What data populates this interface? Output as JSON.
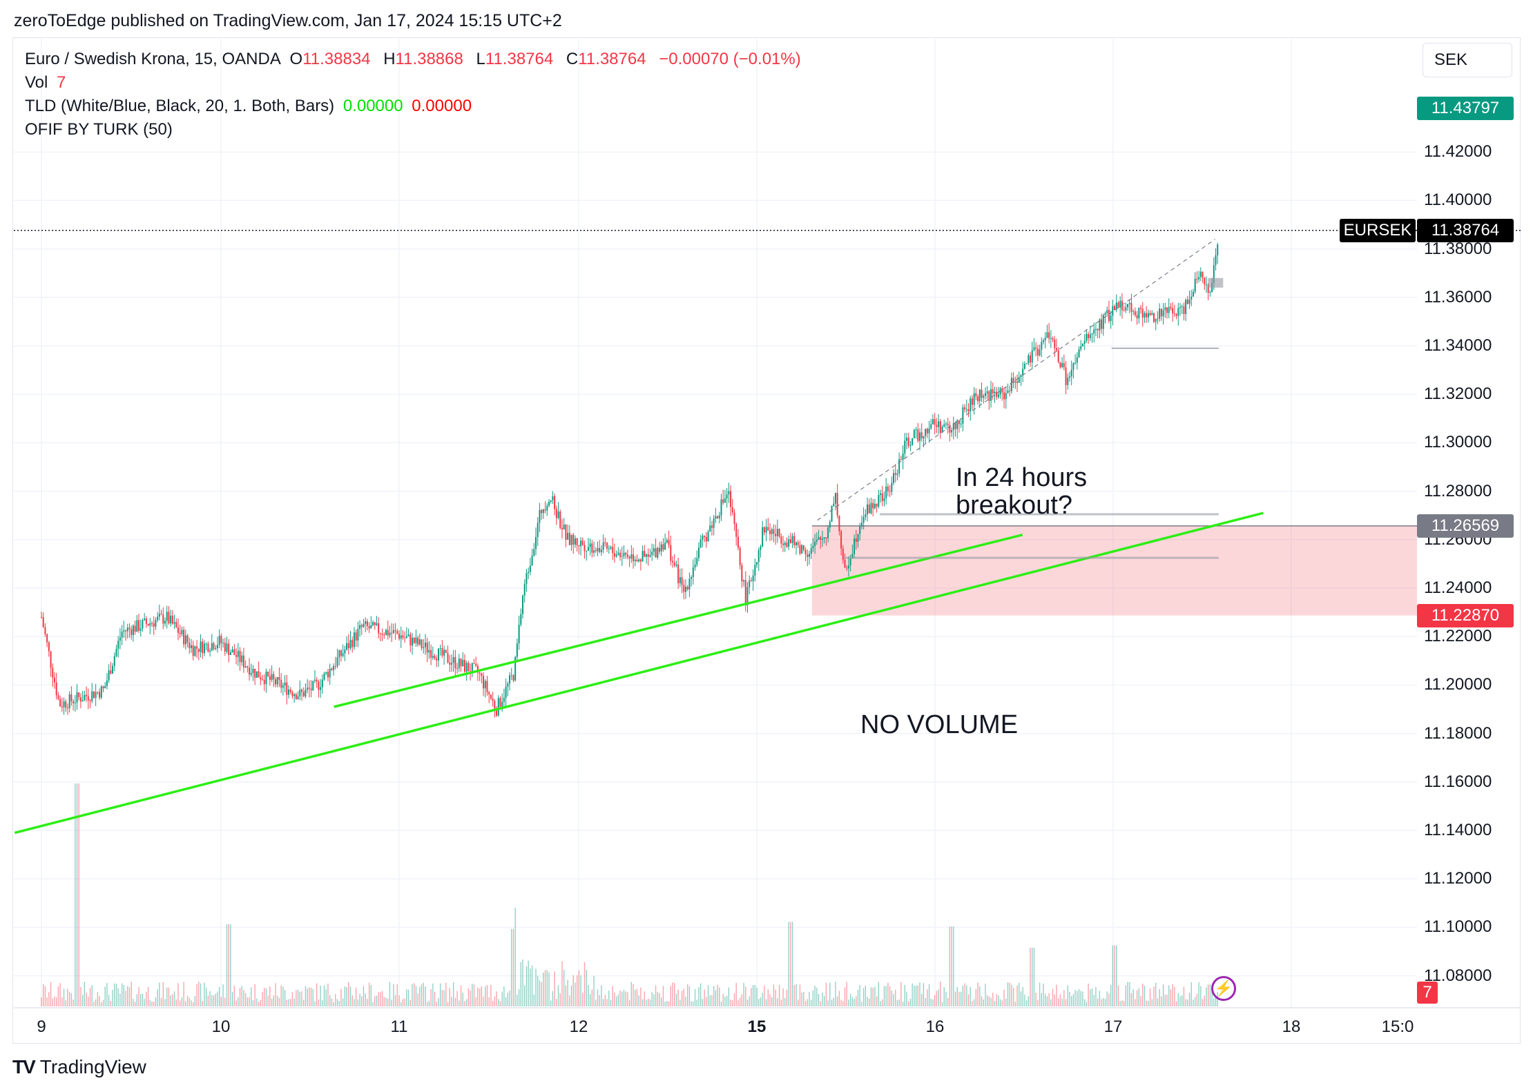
{
  "header": {
    "published": "zeroToEdge published on TradingView.com, Jan 17, 2024 15:15 UTC+2"
  },
  "legend": {
    "symbol": "Euro / Swedish Krona, 15, OANDA",
    "o_label": "O",
    "o_value": "11.38834",
    "h_label": "H",
    "h_value": "11.38868",
    "l_label": "L",
    "l_value": "11.38764",
    "c_label": "C",
    "c_value": "11.38764",
    "change": "−0.00070 (−0.01%)",
    "vol_label": "Vol",
    "vol_value": "7",
    "tld_label": "TLD (White/Blue, Black, 20, 1. Both, Bars)",
    "tld_v1": "0.00000",
    "tld_v2": "0.00000",
    "ofif_label": "OFIF BY TURK (50)"
  },
  "currency": "SEK",
  "price_tags": {
    "target": "11.43797",
    "ticker": "EURSEK",
    "last": "11.38764",
    "entry": "11.26569",
    "stop": "11.22870",
    "volume": "7"
  },
  "annotations": {
    "breakout_line1": "In 24 hours",
    "breakout_line2": "breakout?",
    "no_volume": "NO VOLUME"
  },
  "colors": {
    "up": "#089981",
    "down": "#f23645",
    "target_zone": "#26a69a",
    "stop_zone": "#f23645",
    "trendline": "#2cee14"
  },
  "icons": {
    "flash": "lightning-icon"
  },
  "brand": {
    "logo": "TV",
    "name": "TradingView"
  },
  "chart_data": {
    "type": "candlestick",
    "symbol": "EURSEK",
    "timeframe": "15",
    "y_ticks": [
      "11.42000",
      "11.40000",
      "11.38000",
      "11.36000",
      "11.34000",
      "11.32000",
      "11.30000",
      "11.28000",
      "11.26000",
      "11.24000",
      "11.22000",
      "11.20000",
      "11.18000",
      "11.16000",
      "11.14000",
      "11.12000",
      "11.10000",
      "11.08000"
    ],
    "x_ticks": [
      {
        "label": "9",
        "bold": false
      },
      {
        "label": "10",
        "bold": false
      },
      {
        "label": "11",
        "bold": false
      },
      {
        "label": "12",
        "bold": false
      },
      {
        "label": "15",
        "bold": true
      },
      {
        "label": "16",
        "bold": false
      },
      {
        "label": "17",
        "bold": false
      },
      {
        "label": "18",
        "bold": false
      },
      {
        "label": "15:0",
        "bold": false
      }
    ],
    "ylim": [
      11.07,
      11.445
    ],
    "price_path": [
      {
        "x": 0.0,
        "y": 11.228
      },
      {
        "x": 0.1,
        "y": 11.192
      },
      {
        "x": 0.35,
        "y": 11.198
      },
      {
        "x": 0.45,
        "y": 11.222
      },
      {
        "x": 0.7,
        "y": 11.228
      },
      {
        "x": 0.85,
        "y": 11.215
      },
      {
        "x": 1.0,
        "y": 11.218
      },
      {
        "x": 1.2,
        "y": 11.205
      },
      {
        "x": 1.45,
        "y": 11.196
      },
      {
        "x": 1.55,
        "y": 11.2
      },
      {
        "x": 1.8,
        "y": 11.224
      },
      {
        "x": 2.0,
        "y": 11.221
      },
      {
        "x": 2.3,
        "y": 11.21
      },
      {
        "x": 2.45,
        "y": 11.205
      },
      {
        "x": 2.55,
        "y": 11.19
      },
      {
        "x": 2.65,
        "y": 11.205
      },
      {
        "x": 2.7,
        "y": 11.238
      },
      {
        "x": 2.8,
        "y": 11.272
      },
      {
        "x": 2.85,
        "y": 11.278
      },
      {
        "x": 2.95,
        "y": 11.26
      },
      {
        "x": 3.2,
        "y": 11.255
      },
      {
        "x": 3.4,
        "y": 11.252
      },
      {
        "x": 3.5,
        "y": 11.26
      },
      {
        "x": 3.6,
        "y": 11.238
      },
      {
        "x": 3.7,
        "y": 11.258
      },
      {
        "x": 3.85,
        "y": 11.28
      },
      {
        "x": 3.95,
        "y": 11.235
      },
      {
        "x": 4.05,
        "y": 11.265
      },
      {
        "x": 4.3,
        "y": 11.255
      },
      {
        "x": 4.4,
        "y": 11.262
      },
      {
        "x": 4.45,
        "y": 11.28
      },
      {
        "x": 4.5,
        "y": 11.245
      },
      {
        "x": 4.6,
        "y": 11.27
      },
      {
        "x": 4.75,
        "y": 11.28
      },
      {
        "x": 4.85,
        "y": 11.3
      },
      {
        "x": 5.0,
        "y": 11.308
      },
      {
        "x": 5.1,
        "y": 11.305
      },
      {
        "x": 5.25,
        "y": 11.32
      },
      {
        "x": 5.4,
        "y": 11.32
      },
      {
        "x": 5.5,
        "y": 11.33
      },
      {
        "x": 5.65,
        "y": 11.345
      },
      {
        "x": 5.75,
        "y": 11.325
      },
      {
        "x": 5.85,
        "y": 11.342
      },
      {
        "x": 5.95,
        "y": 11.35
      },
      {
        "x": 6.05,
        "y": 11.358
      },
      {
        "x": 6.2,
        "y": 11.352
      },
      {
        "x": 6.4,
        "y": 11.355
      },
      {
        "x": 6.5,
        "y": 11.372
      },
      {
        "x": 6.55,
        "y": 11.36
      },
      {
        "x": 6.6,
        "y": 11.387
      }
    ],
    "volume_spikes": [
      {
        "x": 0.2,
        "v": 0.95
      },
      {
        "x": 1.05,
        "v": 0.35
      },
      {
        "x": 2.65,
        "v": 0.33
      },
      {
        "x": 4.2,
        "v": 0.36
      },
      {
        "x": 5.1,
        "v": 0.34
      },
      {
        "x": 5.55,
        "v": 0.25
      },
      {
        "x": 6.02,
        "v": 0.26
      }
    ],
    "trendlines": [
      {
        "from": {
          "x": 1.64,
          "y": 11.191
        },
        "to": {
          "x": 5.5,
          "y": 11.262
        }
      },
      {
        "from": {
          "x": -0.15,
          "y": 11.139
        },
        "to": {
          "x": 6.85,
          "y": 11.271
        }
      }
    ],
    "position": {
      "target": 11.43797,
      "entry": 11.26569,
      "stop": 11.2287,
      "start_x": 4.32
    },
    "last_price": 11.38764
  }
}
